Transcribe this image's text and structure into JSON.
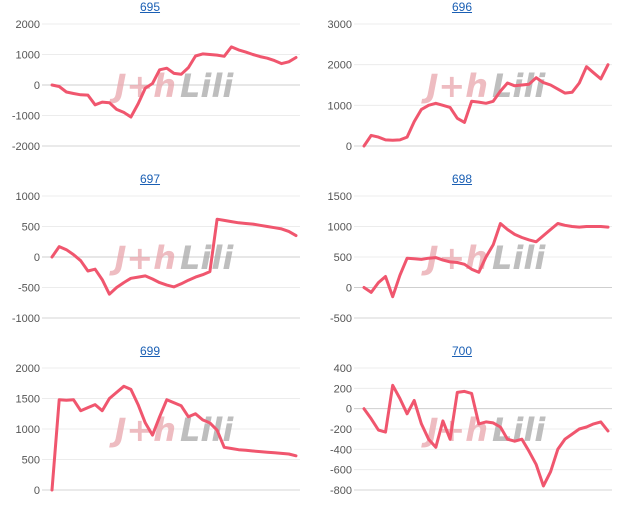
{
  "series_color": "#f0566e",
  "watermark": {
    "left": "J+h",
    "right": "Lili"
  },
  "chart_data": [
    {
      "type": "line",
      "title": "695",
      "ylim": [
        -2000,
        2000
      ],
      "yticks": [
        -2000,
        -1000,
        0,
        1000,
        2000
      ],
      "x": [
        0,
        1,
        2,
        3,
        4,
        5,
        6,
        7,
        8,
        9,
        10,
        11,
        12,
        13,
        14,
        15,
        16,
        17,
        18,
        19,
        20,
        21,
        22,
        23,
        24,
        25,
        26,
        27,
        28,
        29,
        30,
        31,
        32,
        33,
        34
      ],
      "values": [
        0,
        -50,
        -230,
        -280,
        -320,
        -330,
        -650,
        -560,
        -580,
        -800,
        -900,
        -1050,
        -620,
        -100,
        50,
        500,
        550,
        380,
        350,
        570,
        950,
        1020,
        1000,
        980,
        940,
        1250,
        1150,
        1080,
        1000,
        930,
        880,
        800,
        700,
        760,
        900
      ]
    },
    {
      "type": "line",
      "title": "696",
      "ylim": [
        0,
        3000
      ],
      "yticks": [
        0,
        1000,
        2000,
        3000
      ],
      "x": [
        0,
        1,
        2,
        3,
        4,
        5,
        6,
        7,
        8,
        9,
        10,
        11,
        12,
        13,
        14,
        15,
        16,
        17,
        18,
        19,
        20,
        21,
        22,
        23,
        24,
        25,
        26,
        27,
        28,
        29,
        30,
        31,
        32,
        33,
        34
      ],
      "values": [
        0,
        260,
        220,
        150,
        140,
        150,
        220,
        600,
        900,
        1000,
        1050,
        1000,
        950,
        680,
        580,
        1100,
        1080,
        1050,
        1100,
        1350,
        1550,
        1480,
        1500,
        1520,
        1680,
        1560,
        1500,
        1400,
        1300,
        1320,
        1550,
        1950,
        1800,
        1650,
        2000
      ]
    },
    {
      "type": "line",
      "title": "697",
      "ylim": [
        -1000,
        1000
      ],
      "yticks": [
        -1000,
        -500,
        0,
        500,
        1000
      ],
      "x": [
        0,
        1,
        2,
        3,
        4,
        5,
        6,
        7,
        8,
        9,
        10,
        11,
        12,
        13,
        14,
        15,
        16,
        17,
        18,
        19,
        20,
        21,
        22,
        23,
        24,
        25,
        26,
        27,
        28,
        29,
        30,
        31,
        32,
        33,
        34
      ],
      "values": [
        0,
        170,
        120,
        40,
        -60,
        -230,
        -200,
        -370,
        -610,
        -500,
        -420,
        -350,
        -330,
        -310,
        -360,
        -420,
        -460,
        -490,
        -440,
        -380,
        -330,
        -290,
        -240,
        620,
        600,
        580,
        560,
        550,
        540,
        520,
        500,
        480,
        460,
        420,
        350
      ]
    },
    {
      "type": "line",
      "title": "698",
      "ylim": [
        -500,
        1500
      ],
      "yticks": [
        -500,
        0,
        500,
        1000,
        1500
      ],
      "x": [
        0,
        1,
        2,
        3,
        4,
        5,
        6,
        7,
        8,
        9,
        10,
        11,
        12,
        13,
        14,
        15,
        16,
        17,
        18,
        19,
        20,
        21,
        22,
        23,
        24,
        25,
        26,
        27,
        28,
        29,
        30,
        31,
        32,
        33,
        34
      ],
      "values": [
        0,
        -80,
        80,
        180,
        -150,
        200,
        480,
        470,
        460,
        480,
        490,
        450,
        420,
        410,
        380,
        300,
        250,
        500,
        700,
        1050,
        950,
        870,
        820,
        780,
        750,
        850,
        950,
        1050,
        1020,
        1000,
        990,
        1000,
        1000,
        1000,
        990
      ]
    },
    {
      "type": "line",
      "title": "699",
      "ylim": [
        0,
        2000
      ],
      "yticks": [
        0,
        500,
        1000,
        1500,
        2000
      ],
      "x": [
        0,
        1,
        2,
        3,
        4,
        5,
        6,
        7,
        8,
        9,
        10,
        11,
        12,
        13,
        14,
        15,
        16,
        17,
        18,
        19,
        20,
        21,
        22,
        23,
        24,
        25,
        26,
        27,
        28,
        29,
        30,
        31,
        32,
        33,
        34
      ],
      "values": [
        0,
        1480,
        1470,
        1480,
        1300,
        1350,
        1400,
        1300,
        1500,
        1600,
        1700,
        1650,
        1400,
        1100,
        900,
        1200,
        1480,
        1430,
        1380,
        1200,
        1250,
        1150,
        1100,
        980,
        700,
        680,
        660,
        650,
        640,
        630,
        620,
        610,
        600,
        590,
        560
      ]
    },
    {
      "type": "line",
      "title": "700",
      "ylim": [
        -800,
        400
      ],
      "yticks": [
        -800,
        -600,
        -400,
        -200,
        0,
        200,
        400
      ],
      "x": [
        0,
        1,
        2,
        3,
        4,
        5,
        6,
        7,
        8,
        9,
        10,
        11,
        12,
        13,
        14,
        15,
        16,
        17,
        18,
        19,
        20,
        21,
        22,
        23,
        24,
        25,
        26,
        27,
        28,
        29,
        30,
        31,
        32,
        33,
        34
      ],
      "values": [
        0,
        -100,
        -210,
        -230,
        230,
        100,
        -50,
        80,
        -150,
        -300,
        -380,
        -120,
        -300,
        160,
        170,
        150,
        -150,
        -130,
        -140,
        -180,
        -300,
        -320,
        -300,
        -420,
        -550,
        -760,
        -620,
        -400,
        -300,
        -250,
        -200,
        -180,
        -150,
        -130,
        -220
      ]
    }
  ]
}
